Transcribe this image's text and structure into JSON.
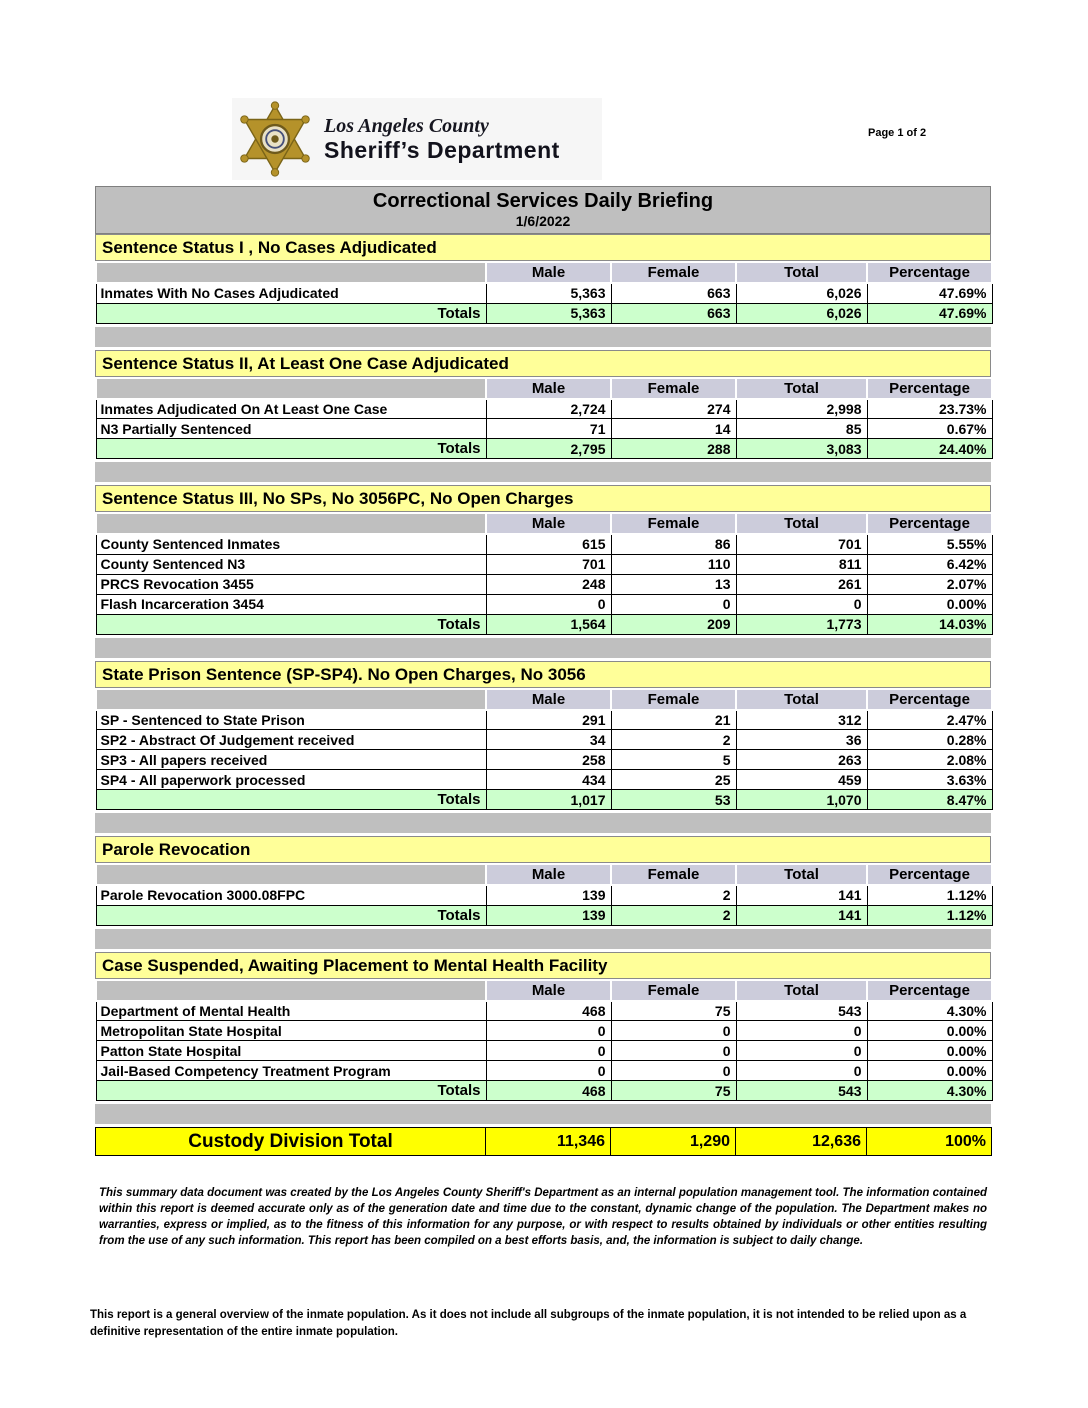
{
  "header": {
    "agency_line1": "Los Angeles County",
    "agency_line2": "Sheriff’s Department",
    "page_label": "Page 1 of 2"
  },
  "report": {
    "title": "Correctional Services Daily Briefing",
    "date": "1/6/2022",
    "columns": [
      "Male",
      "Female",
      "Total",
      "Percentage"
    ],
    "totals_label": "Totals",
    "sections": [
      {
        "title": "Sentence Status I , No Cases Adjudicated",
        "rows": [
          {
            "label": "Inmates With No Cases Adjudicated",
            "male": "5,363",
            "female": "663",
            "total": "6,026",
            "percentage": "47.69%"
          }
        ],
        "totals": {
          "male": "5,363",
          "female": "663",
          "total": "6,026",
          "percentage": "47.69%"
        }
      },
      {
        "title": "Sentence Status II, At Least One Case Adjudicated",
        "rows": [
          {
            "label": "Inmates Adjudicated On At Least One Case",
            "male": "2,724",
            "female": "274",
            "total": "2,998",
            "percentage": "23.73%"
          },
          {
            "label": "N3 Partially Sentenced",
            "male": "71",
            "female": "14",
            "total": "85",
            "percentage": "0.67%"
          }
        ],
        "totals": {
          "male": "2,795",
          "female": "288",
          "total": "3,083",
          "percentage": "24.40%"
        }
      },
      {
        "title": "Sentence Status III, No SPs, No 3056PC, No Open Charges",
        "rows": [
          {
            "label": "County Sentenced Inmates",
            "male": "615",
            "female": "86",
            "total": "701",
            "percentage": "5.55%"
          },
          {
            "label": "County Sentenced N3",
            "male": "701",
            "female": "110",
            "total": "811",
            "percentage": "6.42%"
          },
          {
            "label": "PRCS Revocation 3455",
            "male": "248",
            "female": "13",
            "total": "261",
            "percentage": "2.07%"
          },
          {
            "label": "Flash Incarceration 3454",
            "male": "0",
            "female": "0",
            "total": "0",
            "percentage": "0.00%"
          }
        ],
        "totals": {
          "male": "1,564",
          "female": "209",
          "total": "1,773",
          "percentage": "14.03%"
        }
      },
      {
        "title": "State Prison Sentence (SP-SP4). No Open Charges, No 3056",
        "rows": [
          {
            "label": "SP - Sentenced to State Prison",
            "male": "291",
            "female": "21",
            "total": "312",
            "percentage": "2.47%"
          },
          {
            "label": "SP2 - Abstract Of Judgement received",
            "male": "34",
            "female": "2",
            "total": "36",
            "percentage": "0.28%"
          },
          {
            "label": "SP3 - All papers received",
            "male": "258",
            "female": "5",
            "total": "263",
            "percentage": "2.08%"
          },
          {
            "label": "SP4 - All paperwork processed",
            "male": "434",
            "female": "25",
            "total": "459",
            "percentage": "3.63%"
          }
        ],
        "totals": {
          "male": "1,017",
          "female": "53",
          "total": "1,070",
          "percentage": "8.47%"
        }
      },
      {
        "title": "Parole Revocation",
        "rows": [
          {
            "label": "Parole Revocation 3000.08FPC",
            "male": "139",
            "female": "2",
            "total": "141",
            "percentage": "1.12%"
          }
        ],
        "totals": {
          "male": "139",
          "female": "2",
          "total": "141",
          "percentage": "1.12%"
        }
      },
      {
        "title": "Case Suspended, Awaiting Placement to Mental Health Facility",
        "rows": [
          {
            "label": "Department of Mental Health",
            "male": "468",
            "female": "75",
            "total": "543",
            "percentage": "4.30%"
          },
          {
            "label": "Metropolitan State Hospital",
            "male": "0",
            "female": "0",
            "total": "0",
            "percentage": "0.00%"
          },
          {
            "label": "Patton State Hospital",
            "male": "0",
            "female": "0",
            "total": "0",
            "percentage": "0.00%"
          },
          {
            "label": "Jail-Based Competency Treatment Program",
            "male": "0",
            "female": "0",
            "total": "0",
            "percentage": "0.00%"
          }
        ],
        "totals": {
          "male": "468",
          "female": "75",
          "total": "543",
          "percentage": "4.30%"
        }
      }
    ],
    "grand_total": {
      "label": "Custody Division Total",
      "male": "11,346",
      "female": "1,290",
      "total": "12,636",
      "percentage": "100%"
    }
  },
  "footer": {
    "disclaimer": "This summary data document was created by the Los Angeles County Sheriff's Department as an internal population management tool.  The information contained within this report is deemed accurate only as of the generation date and time due to the constant, dynamic change of the population.  The Department makes no warranties, express or implied, as to the fitness of this information for any purpose, or with respect to results obtained by individuals or other entities resulting from the use of any such information.  This report has been compiled on a best efforts basis, and, the information is subject to daily change.",
    "overview": "This report is a general overview of the inmate population.  As it does not include all subgroups of the inmate population, it is not intended to be relied upon as a definitive representation of the entire inmate population."
  },
  "colors": {
    "title_bar_bg": "#bfbfbf",
    "section_header_bg": "#ffff99",
    "column_header_bg": "#ccccdb",
    "totals_row_bg": "#ccffcc",
    "grand_total_bg": "#ffff00",
    "spacer_bg": "#bfbfbf",
    "border": "#000000",
    "star_gold": "#b5922a"
  }
}
